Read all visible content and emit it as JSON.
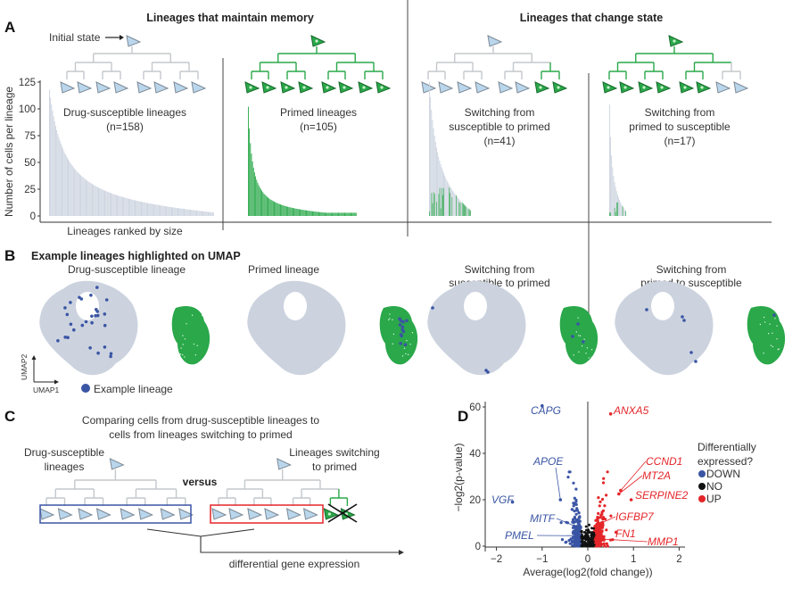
{
  "panel_a": {
    "letter": "A",
    "title_memory": "Lineages that maintain memory",
    "title_change": "Lineages that change state",
    "initial_state": "Initial state",
    "ylabel": "Number of cells per lineage",
    "xlabel": "Lineages ranked by size",
    "yticks": [
      "0",
      "25",
      "50",
      "75",
      "100",
      "125"
    ],
    "groups": [
      {
        "line1": "Drug-susceptible lineages",
        "line2": "(n=158)",
        "line3": "",
        "n": 158,
        "max": 118,
        "color": "#ccd3df",
        "root": "susceptible",
        "leaves": [
          "s",
          "s",
          "s",
          "s",
          "s",
          "s",
          "s",
          "s"
        ]
      },
      {
        "line1": "Primed lineages",
        "line2": "(n=105)",
        "line3": "",
        "n": 105,
        "max": 102,
        "color": "#2aa84a",
        "root": "primed",
        "leaves": [
          "p",
          "p",
          "p",
          "p",
          "p",
          "p",
          "p",
          "p"
        ]
      },
      {
        "line1": "Switching from",
        "line2": "susceptible to primed",
        "line3": "(n=41)",
        "n": 41,
        "max": 125,
        "color": "#ccd3df",
        "root": "susceptible",
        "leaves": [
          "s",
          "s",
          "s",
          "s",
          "s",
          "s",
          "p",
          "p"
        ]
      },
      {
        "line1": "Switching from",
        "line2": "primed to susceptible",
        "line3": "(n=17)",
        "n": 17,
        "max": 104,
        "color": "#ccd3df",
        "root": "primed",
        "leaves": [
          "p",
          "p",
          "p",
          "p",
          "p",
          "p",
          "s",
          "s"
        ]
      }
    ]
  },
  "panel_b": {
    "letter": "B",
    "title": "Example lineages highlighted on UMAP",
    "umaps": [
      {
        "line1": "Drug-susceptible lineage",
        "line2": ""
      },
      {
        "line1": "Primed lineage",
        "line2": ""
      },
      {
        "line1": "Switching from",
        "line2": "susceptible to primed"
      },
      {
        "line1": "Switching from",
        "line2": "primed to susceptible"
      }
    ],
    "axis_x": "UMAP1",
    "axis_y": "UMAP2",
    "legend": "Example lineage"
  },
  "panel_c": {
    "letter": "C",
    "title_line1": "Comparing cells from drug-susceptible lineages to",
    "title_line2": "cells from lineages switching to primed",
    "left_line1": "Drug-susceptible",
    "left_line2": "lineages",
    "versus": "versus",
    "right_line1": "Lineages switching",
    "right_line2": "to primed",
    "result": "differential gene expression"
  },
  "colors": {
    "susceptible": "#b9d6ec",
    "primed": "#2aa84a",
    "grey": "#ccd3df",
    "down": "#3a55a4",
    "up": "#e4262a",
    "no": "#111111"
  },
  "chart_data": {
    "type": "scatter",
    "letter": "D",
    "xlabel": "Average(log2(fold change))",
    "ylabel": "−log2(p-value)",
    "xlim": [
      -2.2,
      2.1
    ],
    "ylim": [
      0,
      62
    ],
    "xticks": [
      "−2",
      "−1",
      "0",
      "1",
      "2"
    ],
    "xtick_values": [
      -2,
      -1,
      0,
      1,
      2
    ],
    "yticks": [
      "0",
      "20",
      "40",
      "60"
    ],
    "ytick_values": [
      0,
      20,
      40,
      60
    ],
    "legend_title_1": "Differentially",
    "legend_title_2": "expressed?",
    "legend": [
      {
        "label": "DOWN",
        "color": "#3a55a4"
      },
      {
        "label": "NO",
        "color": "#111111"
      },
      {
        "label": "UP",
        "color": "#e4262a"
      }
    ],
    "labeled_genes": [
      {
        "name": "CAPG",
        "x": -1.0,
        "y": 60.5,
        "class": "DOWN"
      },
      {
        "name": "APOE",
        "x": -0.6,
        "y": 20,
        "class": "DOWN"
      },
      {
        "name": "VGF",
        "x": -1.65,
        "y": 19,
        "class": "DOWN"
      },
      {
        "name": "MITF",
        "x": -0.2,
        "y": 8,
        "class": "DOWN"
      },
      {
        "name": "PMEL",
        "x": -0.2,
        "y": 4.5,
        "class": "DOWN"
      },
      {
        "name": "ANXA5",
        "x": 0.5,
        "y": 57,
        "class": "UP"
      },
      {
        "name": "CCND1",
        "x": 0.72,
        "y": 24,
        "class": "UP"
      },
      {
        "name": "MT2A",
        "x": 0.68,
        "y": 22.5,
        "class": "UP"
      },
      {
        "name": "SERPINE2",
        "x": 0.95,
        "y": 20,
        "class": "UP"
      },
      {
        "name": "IGFBP7",
        "x": 0.3,
        "y": 10,
        "class": "UP"
      },
      {
        "name": "FN1",
        "x": 0.62,
        "y": 6,
        "class": "UP"
      },
      {
        "name": "MMP1",
        "x": 0.35,
        "y": 3,
        "class": "UP"
      }
    ]
  }
}
